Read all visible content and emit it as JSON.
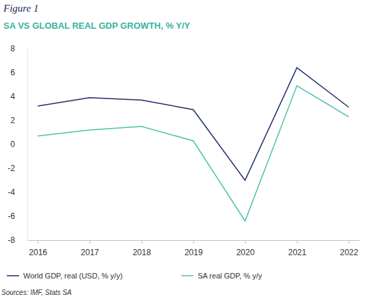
{
  "chart_data": {
    "type": "line",
    "figure_label": "Figure 1",
    "title": "SA VS GLOBAL REAL GDP GROWTH, % Y/Y",
    "source": "Sources: IMF, Stats SA",
    "categories": [
      "2016",
      "2017",
      "2018",
      "2019",
      "2020",
      "2021",
      "2022"
    ],
    "series": [
      {
        "name": "World GDP, real (USD, % y/y)",
        "color": "#1f2a6b",
        "values": [
          3.2,
          3.9,
          3.7,
          2.9,
          -3.0,
          6.4,
          3.1
        ]
      },
      {
        "name": "SA real GDP, % y/y",
        "color": "#4cc0ad",
        "values": [
          0.7,
          1.2,
          1.5,
          0.3,
          -6.4,
          4.9,
          2.3
        ]
      }
    ],
    "ylim": [
      -8,
      8
    ],
    "yticks": [
      -8,
      -6,
      -4,
      -2,
      0,
      2,
      4,
      6,
      8
    ],
    "grid": false,
    "legend": "bottom"
  }
}
